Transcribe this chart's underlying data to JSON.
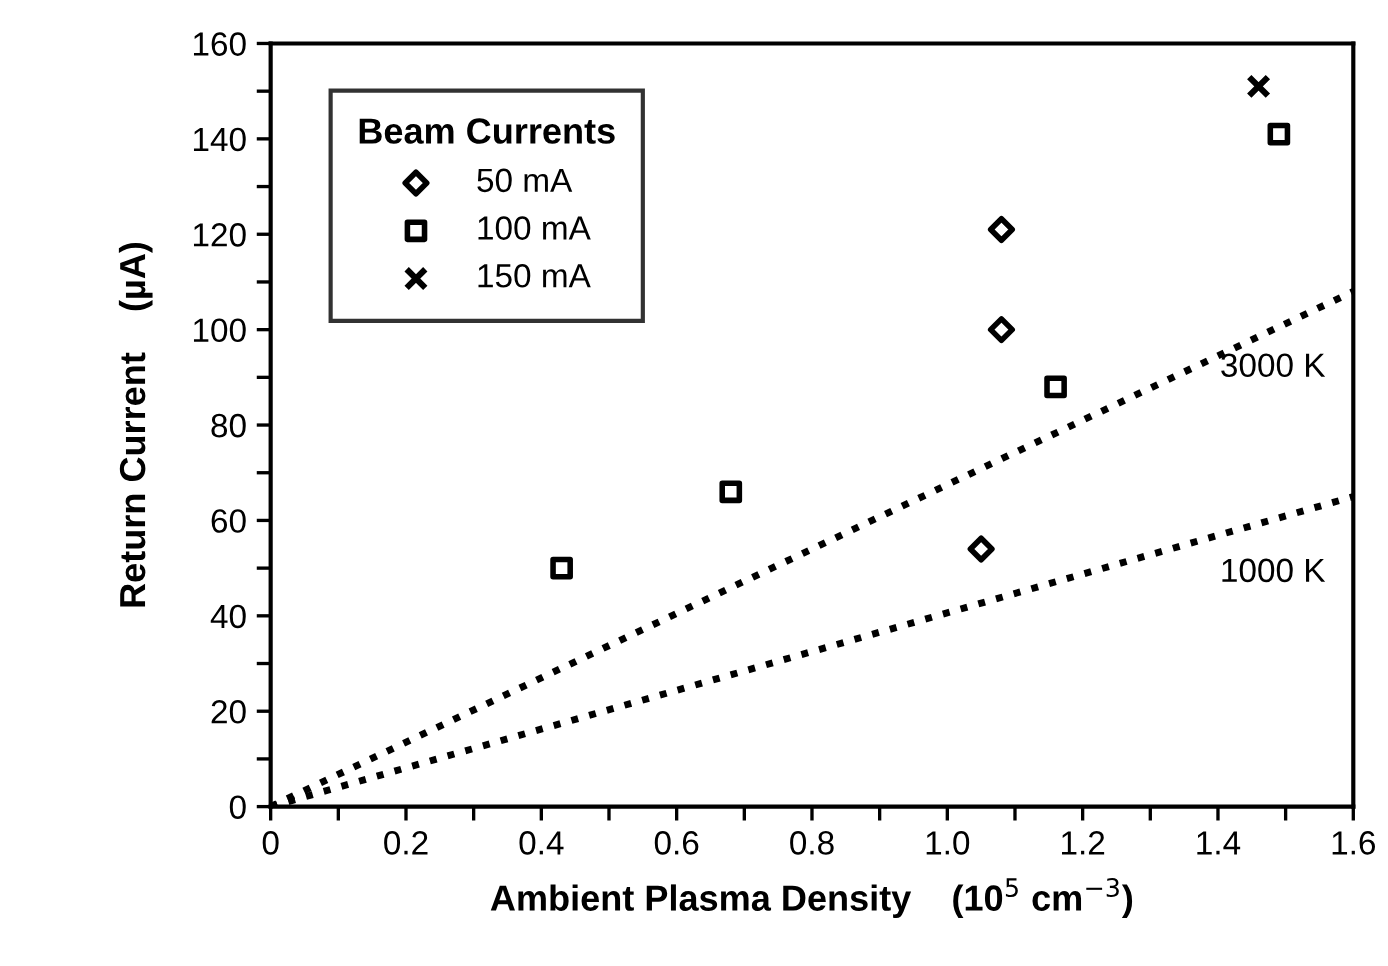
{
  "chart_data": {
    "type": "scatter",
    "xlabel": "Ambient Plasma Density    (10$^{5}$ cm$^{−3}$)",
    "ylabel": "Return Current    (µA)",
    "legend_title": "Beam Currents",
    "legend": "top left",
    "grid": false,
    "xlim": [
      0,
      1.6
    ],
    "ylim": [
      0,
      160
    ],
    "xticks": [
      {
        "value": 0,
        "label": "0"
      },
      {
        "value": 0.1,
        "label": null
      },
      {
        "value": 0.2,
        "label": "0.2"
      },
      {
        "value": 0.3,
        "label": null
      },
      {
        "value": 0.4,
        "label": "0.4"
      },
      {
        "value": 0.5,
        "label": null
      },
      {
        "value": 0.6,
        "label": "0.6"
      },
      {
        "value": 0.7,
        "label": null
      },
      {
        "value": 0.8,
        "label": "0.8"
      },
      {
        "value": 0.9,
        "label": null
      },
      {
        "value": 1.0,
        "label": "1.0"
      },
      {
        "value": 1.1,
        "label": null
      },
      {
        "value": 1.2,
        "label": "1.2"
      },
      {
        "value": 1.3,
        "label": null
      },
      {
        "value": 1.4,
        "label": "1.4"
      },
      {
        "value": 1.5,
        "label": null
      },
      {
        "value": 1.6,
        "label": "1.6"
      }
    ],
    "yticks": [
      0,
      {
        "value": 10,
        "label": null
      },
      20,
      {
        "value": 30,
        "label": null
      },
      40,
      {
        "value": 50,
        "label": null
      },
      60,
      {
        "value": 70,
        "label": null
      },
      80,
      {
        "value": 90,
        "label": null
      },
      100,
      {
        "value": 110,
        "label": null
      },
      120,
      {
        "value": 130,
        "label": null
      },
      140,
      {
        "value": 150,
        "label": null
      },
      160
    ],
    "series": [
      {
        "name": "50 mA",
        "color": "#000000",
        "marker": "diamond",
        "x": [
          1.08,
          1.08,
          1.05
        ],
        "values": [
          121,
          100,
          54
        ]
      },
      {
        "name": "100 mA",
        "color": "#000000",
        "marker": "square",
        "x": [
          0.43,
          0.68,
          1.16,
          1.49
        ],
        "values": [
          50,
          66,
          88,
          141
        ]
      },
      {
        "name": "150 mA",
        "color": "#000000",
        "marker": "cross",
        "x": [
          1.46
        ],
        "values": [
          151
        ]
      },
      {
        "name": "3000 K",
        "type": "line",
        "color": "#000000",
        "line_style": "dotted",
        "marker": "none",
        "x": [
          0,
          1.6
        ],
        "values": [
          0,
          108
        ]
      },
      {
        "name": "1000 K",
        "type": "line",
        "color": "#000000",
        "line_style": "dotted",
        "marker": "none",
        "x": [
          0,
          1.6
        ],
        "values": [
          0,
          65
        ]
      }
    ]
  }
}
